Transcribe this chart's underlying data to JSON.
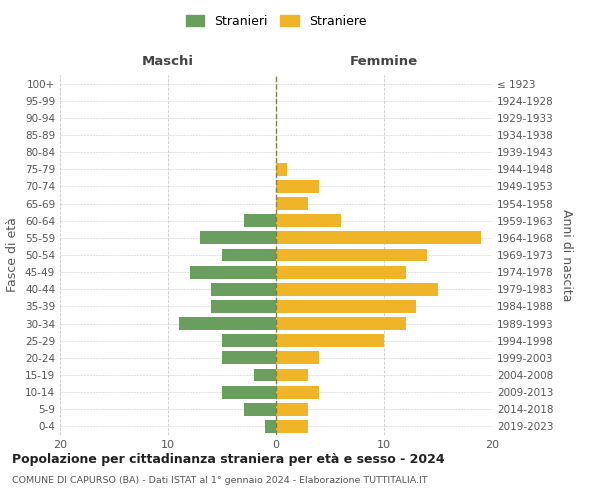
{
  "age_groups": [
    "0-4",
    "5-9",
    "10-14",
    "15-19",
    "20-24",
    "25-29",
    "30-34",
    "35-39",
    "40-44",
    "45-49",
    "50-54",
    "55-59",
    "60-64",
    "65-69",
    "70-74",
    "75-79",
    "80-84",
    "85-89",
    "90-94",
    "95-99",
    "100+"
  ],
  "birth_years": [
    "2019-2023",
    "2014-2018",
    "2009-2013",
    "2004-2008",
    "1999-2003",
    "1994-1998",
    "1989-1993",
    "1984-1988",
    "1979-1983",
    "1974-1978",
    "1969-1973",
    "1964-1968",
    "1959-1963",
    "1954-1958",
    "1949-1953",
    "1944-1948",
    "1939-1943",
    "1934-1938",
    "1929-1933",
    "1924-1928",
    "≤ 1923"
  ],
  "maschi": [
    1,
    3,
    5,
    2,
    5,
    5,
    9,
    6,
    6,
    8,
    5,
    7,
    3,
    0,
    0,
    0,
    0,
    0,
    0,
    0,
    0
  ],
  "femmine": [
    3,
    3,
    4,
    3,
    4,
    10,
    12,
    13,
    15,
    12,
    14,
    19,
    6,
    3,
    4,
    1,
    0,
    0,
    0,
    0,
    0
  ],
  "color_maschi": "#6a9e5f",
  "color_femmine": "#f0b429",
  "title": "Popolazione per cittadinanza straniera per età e sesso - 2024",
  "subtitle": "COMUNE DI CAPURSO (BA) - Dati ISTAT al 1° gennaio 2024 - Elaborazione TUTTITALIA.IT",
  "xlabel_left": "Maschi",
  "xlabel_right": "Femmine",
  "ylabel_left": "Fasce di età",
  "ylabel_right": "Anni di nascita",
  "legend_maschi": "Stranieri",
  "legend_femmine": "Straniere",
  "xlim": 20,
  "background_color": "#ffffff",
  "grid_color": "#cccccc",
  "dashed_line_color": "#808040"
}
